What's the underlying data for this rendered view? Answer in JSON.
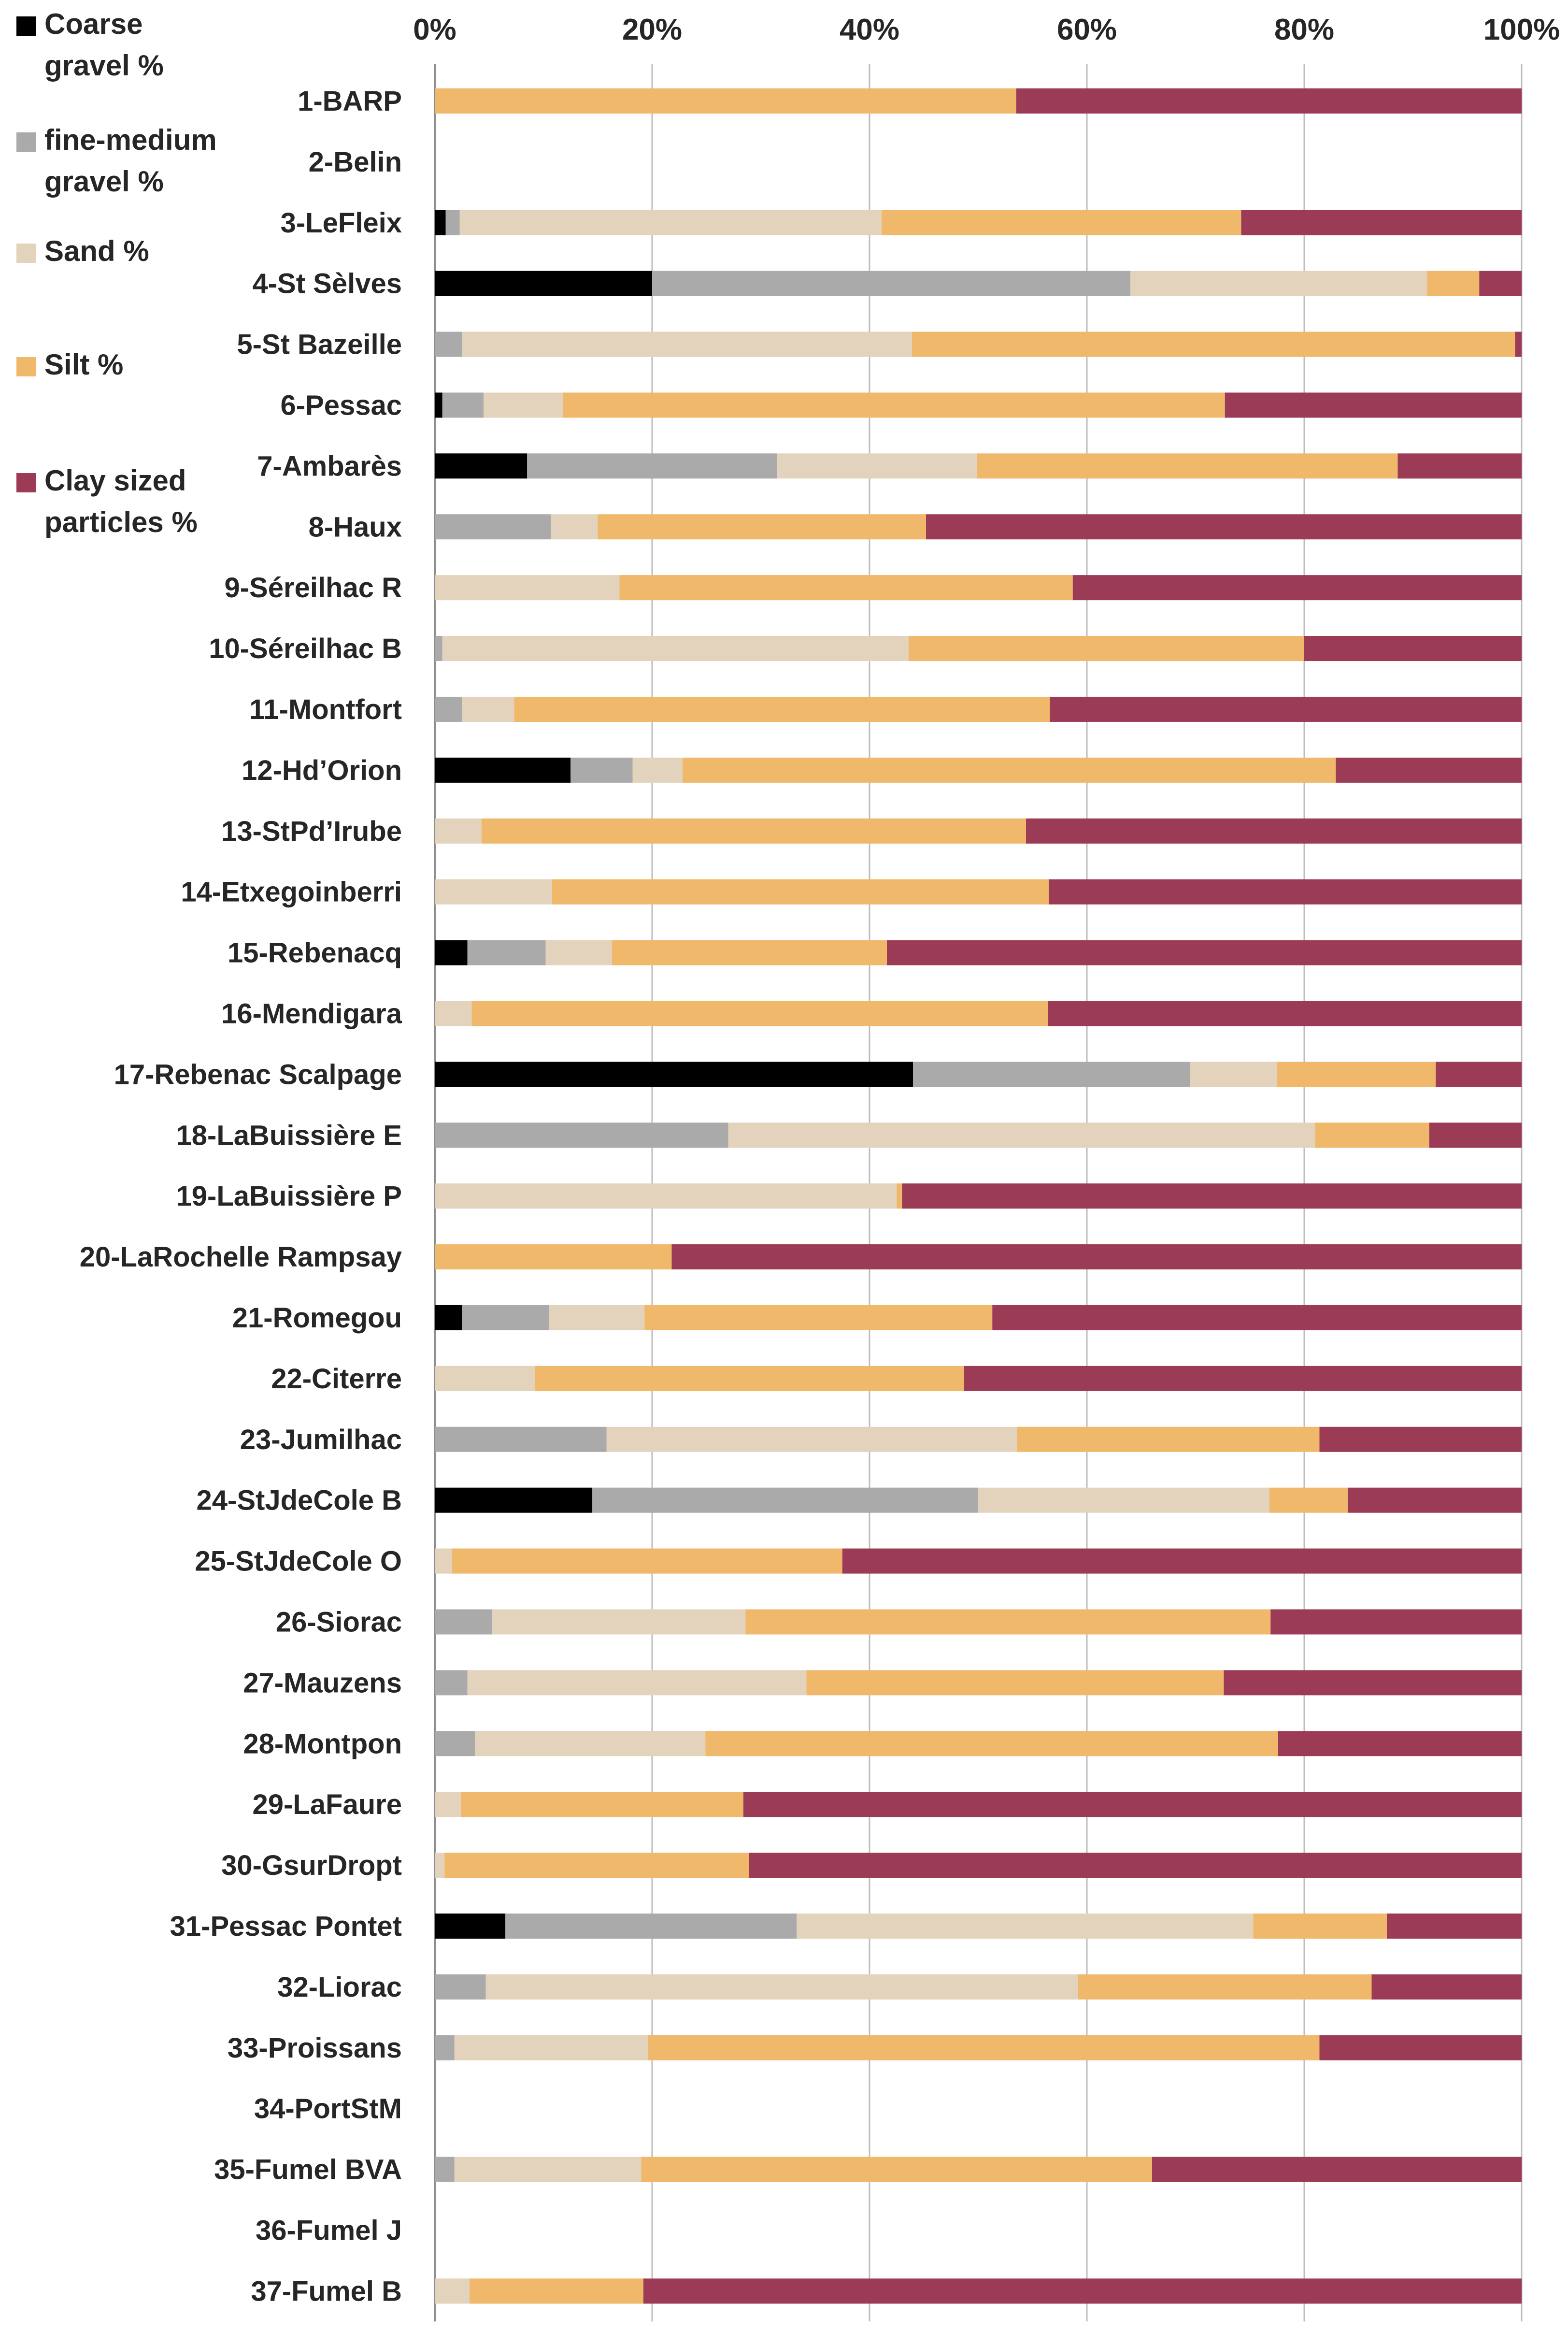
{
  "chart_data": {
    "type": "bar",
    "orientation": "horizontal",
    "stacked": "percent",
    "title": "",
    "xlabel": "",
    "ylabel": "",
    "xlim": [
      0,
      100
    ],
    "x_ticks": [
      "0%",
      "20%",
      "40%",
      "60%",
      "80%",
      "100%"
    ],
    "grid": "vertical",
    "legend_position": "left",
    "categories": [
      "1-BARP",
      "2-Belin",
      "3-LeFleix",
      "4-St Sèlves",
      "5-St Bazeille",
      "6-Pessac",
      "7-Ambarès",
      "8-Haux",
      "9-Séreilhac R",
      "10-Séreilhac B",
      "11-Montfort",
      "12-Hd’Orion",
      "13-StPd’Irube",
      "14-Etxegoinberri",
      "15-Rebenacq",
      "16-Mendigara",
      "17-Rebenac Scalpage",
      "18-LaBuissière E",
      "19-LaBuissière P",
      "20-LaRochelle Rampsay",
      "21-Romegou",
      "22-Citerre",
      "23-Jumilhac",
      "24-StJdeCole B",
      "25-StJdeCole O",
      "26-Siorac",
      "27-Mauzens",
      "28-Montpon",
      "29-LaFaure",
      "30-GsurDropt",
      "31-Pessac Pontet",
      "32-Liorac",
      "33-Proissans",
      "34-PortStM",
      "35-Fumel BVA",
      "36-Fumel J",
      "37-Fumel B"
    ],
    "series": [
      {
        "name": "Coarse gravel %",
        "legend_lines": [
          "Coarse",
          "gravel %"
        ],
        "color": "#000000",
        "values": [
          0,
          0,
          1,
          20,
          0,
          0.7,
          8.5,
          0,
          0,
          0,
          0,
          12.5,
          0,
          0,
          3,
          0,
          44,
          0,
          0,
          0,
          2.5,
          0,
          0,
          14.5,
          0,
          0,
          0,
          0,
          0,
          0,
          6.5,
          0,
          0,
          0,
          0,
          0,
          0
        ]
      },
      {
        "name": "fine-medium gravel %",
        "legend_lines": [
          "fine-medium",
          "gravel %"
        ],
        "color": "#aaaaaa",
        "values": [
          0,
          0,
          1.3,
          44,
          2.5,
          3.8,
          23,
          10.7,
          0,
          0.7,
          2.5,
          5.7,
          0,
          0,
          7.2,
          0,
          25.5,
          27,
          0,
          0,
          8,
          0,
          15.8,
          35.5,
          0,
          5.3,
          3,
          3.7,
          0,
          0,
          26.8,
          4.7,
          1.8,
          0,
          1.8,
          0,
          0
        ]
      },
      {
        "name": "Sand %",
        "legend_lines": [
          "Sand %"
        ],
        "color": "#e3d3bc",
        "values": [
          0,
          0,
          38.8,
          27.3,
          41.4,
          7.3,
          18.4,
          4.3,
          17,
          42.9,
          4.8,
          4.6,
          4.3,
          10.8,
          6.1,
          3.4,
          8,
          54,
          42.5,
          0,
          8.8,
          9.2,
          37.8,
          26.8,
          1.6,
          23.3,
          31.2,
          21.2,
          2.4,
          0.9,
          42,
          54.5,
          17.8,
          0,
          17.2,
          0,
          3.2
        ]
      },
      {
        "name": "Silt %",
        "legend_lines": [
          "Silt %"
        ],
        "color": "#efb86a",
        "values": [
          53.5,
          0,
          33.1,
          4.8,
          55.5,
          60.9,
          38.7,
          30.2,
          41.7,
          36.4,
          49.3,
          60.1,
          50.1,
          45.7,
          25.3,
          53,
          14.6,
          10.5,
          0.5,
          21.8,
          32,
          39.5,
          27.8,
          7.2,
          35.9,
          48.3,
          38.4,
          52.7,
          26,
          28,
          12.3,
          27,
          61.8,
          0,
          47,
          0,
          16
        ]
      },
      {
        "name": "Clay sized particles %",
        "legend_lines": [
          "Clay sized",
          "particles %"
        ],
        "color": "#9b3b55",
        "values": [
          46.5,
          0,
          25.8,
          3.9,
          0.6,
          27.3,
          11.4,
          54.8,
          41.3,
          20,
          43.4,
          17.1,
          45.6,
          43.5,
          58.4,
          43.6,
          7.9,
          8.5,
          57,
          78.2,
          48.7,
          51.3,
          18.6,
          16,
          62.5,
          23.1,
          27.4,
          22.4,
          71.6,
          71.1,
          12.4,
          13.8,
          18.6,
          0,
          34,
          0,
          80.8
        ]
      }
    ]
  }
}
